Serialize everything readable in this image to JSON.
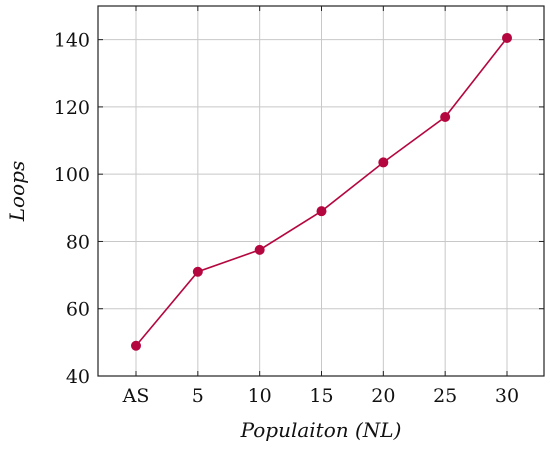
{
  "chart_data": {
    "type": "line",
    "title": "",
    "xlabel": "Populaiton (NL)",
    "ylabel": "Loops",
    "categories": [
      "AS",
      "5",
      "10",
      "15",
      "20",
      "25",
      "30"
    ],
    "series": [
      {
        "values": [
          49,
          71,
          77.5,
          89,
          103.5,
          117,
          140.5
        ]
      }
    ],
    "ylim": [
      40,
      150
    ],
    "yticks": [
      40,
      60,
      80,
      100,
      120,
      140
    ],
    "grid": true,
    "marker": "circle",
    "color": "#b5073f"
  }
}
